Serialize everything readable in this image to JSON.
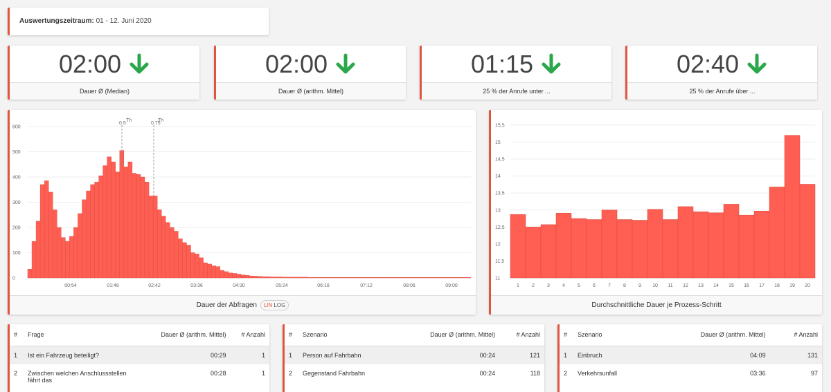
{
  "period": {
    "label": "Auswertungszeitraum:",
    "value": "01 - 12. Juni 2020"
  },
  "kpis": [
    {
      "value": "02:00",
      "label": "Dauer Ø (Median)",
      "trend": "down-arrow-icon"
    },
    {
      "value": "02:00",
      "label": "Dauer Ø (arithm. Mittel)",
      "trend": "down-arrow-icon"
    },
    {
      "value": "01:15",
      "label": "25 % der Anrufe unter ...",
      "trend": "down-arrow-icon"
    },
    {
      "value": "02:40",
      "label": "25 % der Anrufe über ...",
      "trend": "down-arrow-icon"
    }
  ],
  "colors": {
    "accent": "#e0553f",
    "bar": "#ff5e52",
    "trend": "#2aa74a"
  },
  "histogram": {
    "title": "Dauer der Abfragen",
    "toggle_lin": "LIN",
    "toggle_log": "LOG",
    "markers": [
      "0.5",
      "0.75"
    ],
    "marker_suffix": "Th"
  },
  "barchart": {
    "title": "Durchschnittliche Dauer je Prozess-Schritt"
  },
  "chart_data": [
    {
      "type": "bar",
      "title": "Dauer der Abfragen",
      "ylim": [
        0,
        600
      ],
      "yticks": [
        0,
        100,
        200,
        300,
        400,
        500,
        600
      ],
      "xticks": [
        "00:54",
        "01:48",
        "02:42",
        "03:36",
        "04:30",
        "05:24",
        "06:18",
        "07:12",
        "08:06",
        "09:00"
      ],
      "values": [
        35,
        145,
        225,
        370,
        385,
        340,
        270,
        200,
        160,
        145,
        165,
        200,
        255,
        310,
        345,
        370,
        380,
        405,
        445,
        480,
        460,
        420,
        505,
        440,
        460,
        415,
        410,
        400,
        380,
        325,
        325,
        270,
        245,
        220,
        200,
        185,
        155,
        140,
        130,
        100,
        95,
        80,
        60,
        55,
        48,
        45,
        30,
        25,
        20,
        18,
        15,
        12,
        10,
        8,
        7,
        6,
        5,
        5,
        4,
        4,
        4,
        3,
        3,
        3,
        3,
        3,
        3,
        2,
        2,
        2,
        2,
        2,
        2,
        2,
        2,
        2,
        2,
        2,
        2,
        2,
        2,
        2,
        2,
        2,
        2,
        2,
        2,
        2,
        2,
        2,
        2,
        2,
        2,
        2,
        2,
        2,
        2,
        2,
        2,
        2,
        2,
        2,
        2,
        2,
        2,
        2
      ]
    },
    {
      "type": "bar",
      "title": "Durchschnittliche Dauer je Prozess-Schritt",
      "ylim": [
        11,
        15.5
      ],
      "yticks": [
        "11",
        "11,5",
        "12",
        "12,5",
        "13",
        "13,5",
        "14",
        "14,5",
        "15",
        "15,5"
      ],
      "categories": [
        "1",
        "2",
        "3",
        "4",
        "5",
        "6",
        "7",
        "8",
        "9",
        "10",
        "11",
        "12",
        "13",
        "14",
        "15",
        "16",
        "17",
        "18",
        "19",
        "20"
      ],
      "values": [
        12.87,
        12.5,
        12.57,
        12.91,
        12.75,
        12.72,
        13.0,
        12.72,
        12.7,
        13.02,
        12.72,
        13.1,
        12.95,
        12.92,
        13.17,
        12.85,
        12.97,
        13.68,
        15.2,
        13.76
      ]
    }
  ],
  "tables": [
    {
      "headers": [
        "#",
        "Frage",
        "Dauer Ø (arithm. Mittel)",
        "# Anzahl"
      ],
      "rows": [
        [
          "1",
          "Ist ein Fahrzeug beteiligt?",
          "00:29",
          "1"
        ],
        [
          "2",
          "Zwischen welchen Anschlussstellen fährt das",
          "00:28",
          "1"
        ]
      ]
    },
    {
      "headers": [
        "#",
        "Szenario",
        "Dauer Ø (arithm. Mittel)",
        "# Anzahl"
      ],
      "rows": [
        [
          "1",
          "Person auf Fahrbahn",
          "00:24",
          "121"
        ],
        [
          "2",
          "Gegenstand Fahrbahn",
          "00:24",
          "118"
        ]
      ]
    },
    {
      "headers": [
        "#",
        "Szenario",
        "Dauer Ø (arithm. Mittel)",
        "# Anzahl"
      ],
      "rows": [
        [
          "1",
          "Einbruch",
          "04:09",
          "131"
        ],
        [
          "2",
          "Verkehrsunfall",
          "03:36",
          "97"
        ]
      ]
    }
  ]
}
